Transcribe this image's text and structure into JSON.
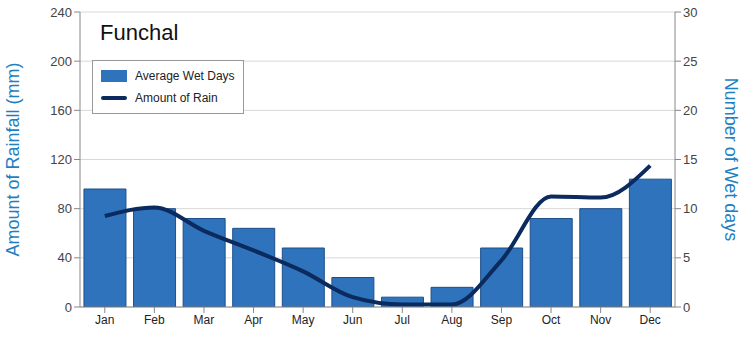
{
  "chart_data": {
    "type": "bar",
    "title": "Funchal",
    "y_label": "Amount of Rainfall (mm)",
    "y2_label": "Number of Wet days",
    "categories": [
      "Jan",
      "Feb",
      "Mar",
      "Apr",
      "May",
      "Jun",
      "Jul",
      "Aug",
      "Sep",
      "Oct",
      "Nov",
      "Dec"
    ],
    "series": [
      {
        "name": "Average Wet Days",
        "type": "bar",
        "axis": "y2",
        "color": "#2f73bd",
        "values": [
          12,
          10,
          9,
          8,
          6,
          3,
          1,
          2,
          6,
          9,
          10,
          13
        ]
      },
      {
        "name": "Amount of Rain",
        "type": "line",
        "color": "#0b2a5e",
        "values": [
          74,
          81,
          62,
          46,
          29,
          8,
          2,
          2,
          38,
          90,
          89,
          115
        ]
      }
    ],
    "ylim": [
      0,
      240
    ],
    "yticks": [
      0,
      40,
      80,
      120,
      160,
      200,
      240
    ],
    "y2lim": [
      0,
      30
    ],
    "y2ticks": [
      0,
      5,
      10,
      15,
      20,
      25,
      30
    ],
    "grid": true,
    "legend": "upper left"
  }
}
